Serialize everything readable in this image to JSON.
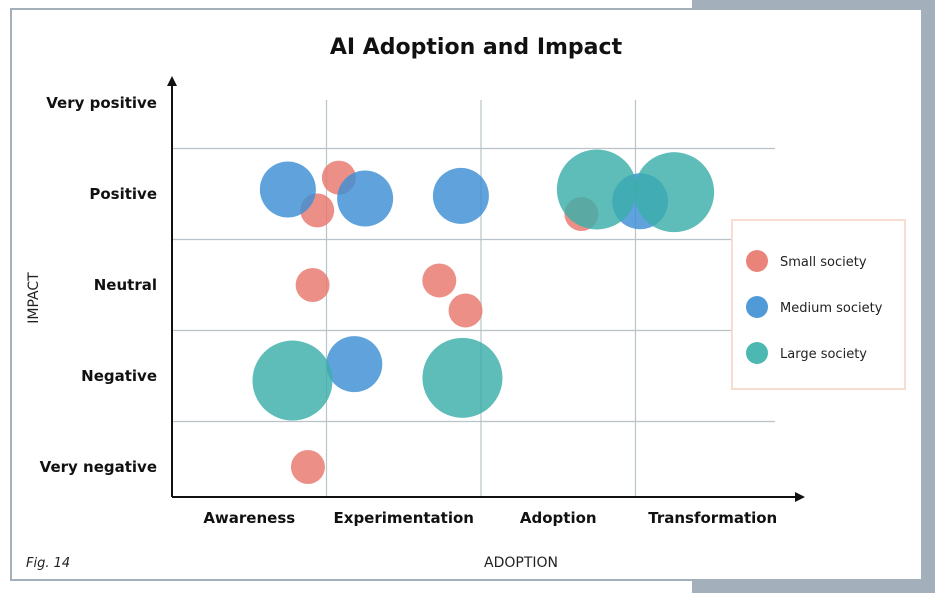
{
  "chart_data": {
    "type": "scatter",
    "title": "AI Adoption and Impact",
    "xlabel": "ADOPTION",
    "ylabel": "IMPACT",
    "caption": "Fig. 14",
    "x_categories": [
      "Awareness",
      "Experimentation",
      "Adoption",
      "Transformation"
    ],
    "y_categories": [
      "Very negative",
      "Negative",
      "Neutral",
      "Positive",
      "Very positive"
    ],
    "grid": true,
    "legend_position": "right",
    "series": [
      {
        "name": "Small society",
        "color": "#e8776d",
        "size": "small",
        "points": [
          {
            "x": 0.58,
            "y": 3.18
          },
          {
            "x": 0.44,
            "y": 2.82
          },
          {
            "x": 0.41,
            "y": 2.0
          },
          {
            "x": 0.38,
            "y": 0.0
          },
          {
            "x": 1.23,
            "y": 2.05
          },
          {
            "x": 1.4,
            "y": 1.72
          },
          {
            "x": 2.15,
            "y": 2.78
          }
        ]
      },
      {
        "name": "Medium society",
        "color": "#3d8fd4",
        "size": "medium",
        "points": [
          {
            "x": 0.25,
            "y": 3.05
          },
          {
            "x": 0.75,
            "y": 2.95
          },
          {
            "x": 1.37,
            "y": 2.98
          },
          {
            "x": 0.68,
            "y": 1.13
          },
          {
            "x": 2.53,
            "y": 2.92
          }
        ]
      },
      {
        "name": "Large society",
        "color": "#3aafa9",
        "size": "large",
        "points": [
          {
            "x": 0.28,
            "y": 0.95
          },
          {
            "x": 1.38,
            "y": 0.98
          },
          {
            "x": 2.25,
            "y": 3.05
          },
          {
            "x": 2.75,
            "y": 3.02
          }
        ]
      }
    ]
  }
}
